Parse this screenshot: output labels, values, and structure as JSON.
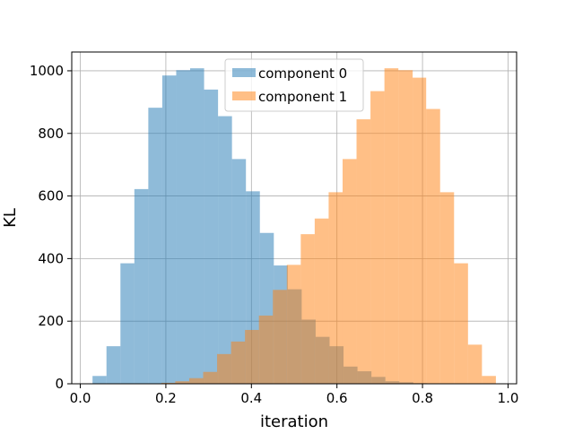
{
  "chart_data": {
    "type": "bar",
    "subtype": "histogram",
    "title": "",
    "xlabel": "iteration",
    "ylabel": "KL",
    "xlim": [
      -0.02,
      1.02
    ],
    "ylim": [
      0,
      1060
    ],
    "xticks": [
      0.0,
      0.2,
      0.4,
      0.6,
      0.8,
      1.0
    ],
    "xtick_labels": [
      "0.0",
      "0.2",
      "0.4",
      "0.6",
      "0.8",
      "1.0"
    ],
    "yticks": [
      0,
      200,
      400,
      600,
      800,
      1000
    ],
    "ytick_labels": [
      "0",
      "200",
      "400",
      "600",
      "800",
      "1000"
    ],
    "grid": true,
    "legend_position": "upper-center",
    "bar_opacity": 0.5,
    "series": [
      {
        "name": "component 0",
        "color": "#1f77b4",
        "bin_edges": [
          0.0286,
          0.0612,
          0.0938,
          0.1264,
          0.159,
          0.1916,
          0.2242,
          0.2568,
          0.2894,
          0.322,
          0.3546,
          0.3872,
          0.4198,
          0.4524,
          0.485,
          0.5176,
          0.5502,
          0.5828,
          0.6154,
          0.648,
          0.6806,
          0.7132,
          0.7458,
          0.7784,
          0.811
        ],
        "counts": [
          25,
          120,
          385,
          622,
          882,
          985,
          1002,
          1008,
          940,
          855,
          718,
          615,
          482,
          378,
          302,
          205,
          150,
          120,
          55,
          40,
          22,
          8,
          5,
          2
        ]
      },
      {
        "name": "component 1",
        "color": "#ff7f0e",
        "bin_edges": [
          0.1894,
          0.222,
          0.2546,
          0.2872,
          0.3198,
          0.3524,
          0.385,
          0.4176,
          0.4502,
          0.4828,
          0.5154,
          0.548,
          0.5806,
          0.6132,
          0.6458,
          0.6784,
          0.711,
          0.7436,
          0.777,
          0.8086,
          0.8412,
          0.8738,
          0.9064,
          0.939,
          0.9716
        ],
        "counts": [
          3,
          8,
          18,
          38,
          95,
          135,
          172,
          218,
          300,
          380,
          478,
          528,
          612,
          718,
          845,
          935,
          1008,
          1002,
          978,
          878,
          612,
          385,
          125,
          25
        ]
      }
    ]
  }
}
